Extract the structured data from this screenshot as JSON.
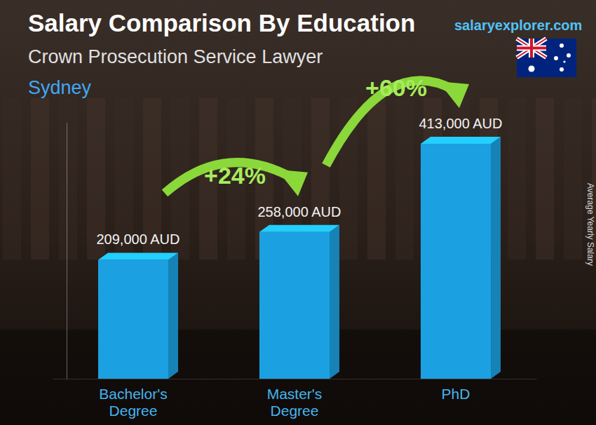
{
  "chart_data": {
    "type": "bar",
    "title": "Salary Comparison By Education",
    "subtitle": "Crown Prosecution Service Lawyer",
    "location": "Sydney",
    "source": "salaryexplorer.com",
    "y_label": "Average Yearly Salary",
    "categories": [
      "Bachelor's Degree",
      "Master's Degree",
      "PhD"
    ],
    "values": [
      209000,
      258000,
      413000
    ],
    "value_labels": [
      "209,000 AUD",
      "258,000 AUD",
      "413,000 AUD"
    ],
    "color": "#1ba1e2",
    "ylim": [
      0,
      450000
    ],
    "data_labels": true,
    "tick_labels": "x",
    "annotations": [
      "+24%",
      "+60%"
    ]
  }
}
